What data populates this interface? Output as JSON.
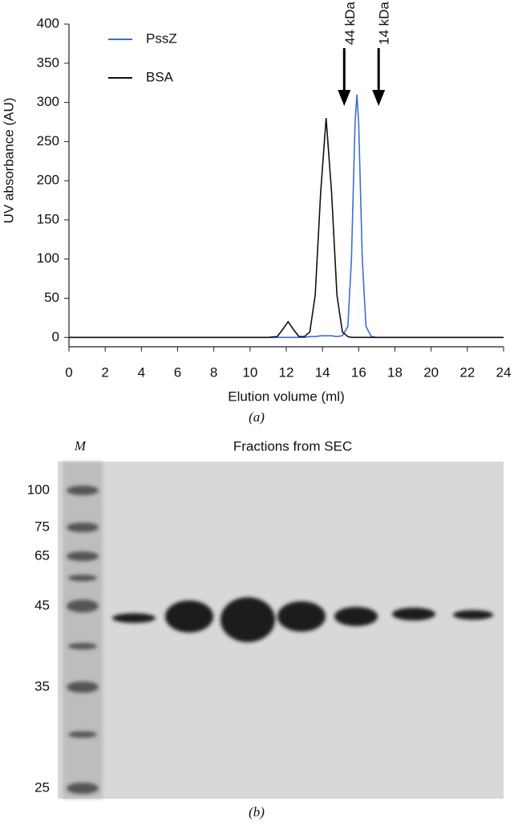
{
  "chart_data": {
    "type": "line",
    "x_label": "Elution volume (ml)",
    "y_label": "UV absorbance (AU)",
    "x": [
      0,
      2,
      4,
      6,
      8,
      10,
      11,
      11.5,
      11.8,
      12.1,
      12.4,
      12.7,
      13,
      13.3,
      13.6,
      13.9,
      14.2,
      14.5,
      14.8,
      15.1,
      15.4,
      15.6,
      15.8,
      15.9,
      16.0,
      16.2,
      16.4,
      16.7,
      17,
      18,
      20,
      22,
      24
    ],
    "series": [
      {
        "name": "PssZ",
        "color": "#3b6fd4",
        "values": [
          0,
          0,
          0,
          0,
          0,
          0,
          0,
          0,
          0,
          0,
          0,
          0,
          0,
          1,
          1,
          2,
          2,
          2,
          1,
          2,
          14,
          100,
          274,
          310,
          274,
          100,
          14,
          1,
          0,
          0,
          0,
          0,
          0
        ]
      },
      {
        "name": "BSA",
        "color": "#111111",
        "values": [
          0,
          0,
          0,
          0,
          0,
          0,
          0,
          1,
          10,
          20,
          10,
          1,
          1,
          7,
          54,
          185,
          280,
          185,
          54,
          7,
          1,
          0,
          0,
          0,
          0,
          0,
          0,
          0,
          0,
          0,
          0,
          0,
          0
        ]
      }
    ],
    "xlim": [
      0,
      24
    ],
    "xticks": [
      0,
      2,
      4,
      6,
      8,
      10,
      12,
      14,
      16,
      18,
      20,
      22,
      24
    ],
    "ylim": [
      -12,
      400
    ],
    "yticks": [
      0,
      50,
      100,
      150,
      200,
      250,
      300,
      350,
      400
    ],
    "legend": "upper-left",
    "annotations": [
      {
        "text": "44 kDa",
        "x": 15.2
      },
      {
        "text": "14 kDa",
        "x": 17.1
      }
    ],
    "panel_label": "(a)"
  },
  "gel": {
    "lane_label": "M",
    "title": "Fractions from SEC",
    "markers": [
      100,
      75,
      65,
      45,
      35,
      25
    ],
    "panel_label": "(b)"
  }
}
